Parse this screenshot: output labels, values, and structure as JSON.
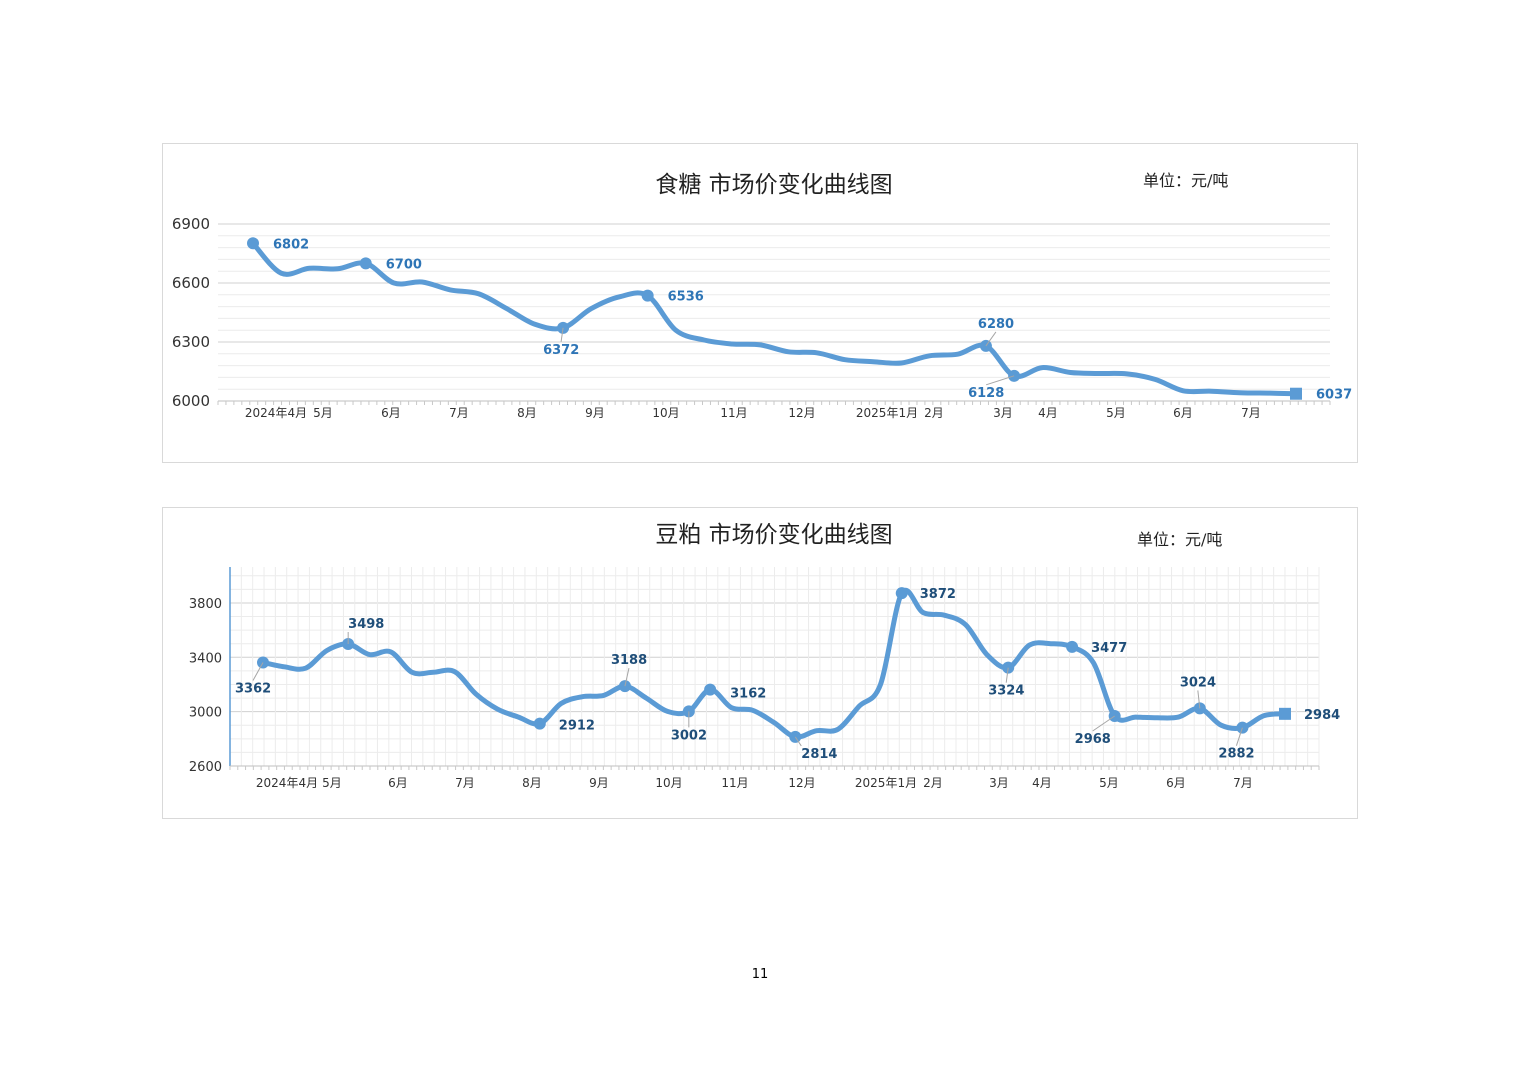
{
  "page_number": "11",
  "colors": {
    "line": "#5b9bd5",
    "label": "#2e75b6",
    "dark_label": "#1f4e79",
    "grid": "#e3e3e3",
    "axis_text": "#333333"
  },
  "chart_data": [
    {
      "type": "line",
      "title": "食糖 市场价变化曲线图",
      "unit": "单位：元/吨",
      "ylim": [
        6000,
        6900
      ],
      "yticks": [
        6000,
        6300,
        6600,
        6900
      ],
      "grid": true,
      "month_labels": [
        "2024年4月",
        "5月",
        "6月",
        "7月",
        "8月",
        "9月",
        "10月",
        "11月",
        "12月",
        "2025年1月",
        "2月",
        "3月",
        "4月",
        "5月",
        "6月",
        "7月"
      ],
      "series": [
        {
          "values": [
            6802,
            6650,
            6675,
            6672,
            6700,
            6600,
            6605,
            6565,
            6545,
            6470,
            6390,
            6372,
            6470,
            6530,
            6536,
            6360,
            6310,
            6290,
            6285,
            6250,
            6245,
            6210,
            6200,
            6193,
            6230,
            6238,
            6280,
            6128,
            6170,
            6145,
            6140,
            6138,
            6110,
            6052,
            6050,
            6042,
            6040,
            6037
          ]
        }
      ],
      "labeled_points": [
        {
          "index": 0,
          "value": "6802"
        },
        {
          "index": 4,
          "value": "6700"
        },
        {
          "index": 11,
          "value": "6372"
        },
        {
          "index": 14,
          "value": "6536"
        },
        {
          "index": 26,
          "value": "6280"
        },
        {
          "index": 27,
          "value": "6128"
        },
        {
          "index": 37,
          "value": "6037"
        }
      ]
    },
    {
      "type": "line",
      "title": "豆粕 市场价变化曲线图",
      "unit": "单位：元/吨",
      "ylim": [
        2600,
        4050
      ],
      "yticks": [
        2600,
        3000,
        3400,
        3800
      ],
      "grid": true,
      "month_labels": [
        "2024年4月",
        "5月",
        "6月",
        "7月",
        "8月",
        "9月",
        "10月",
        "11月",
        "12月",
        "2025年1月",
        "2月",
        "3月",
        "4月",
        "5月",
        "6月",
        "7月"
      ],
      "series": [
        {
          "values": [
            3362,
            3330,
            3320,
            3450,
            3498,
            3420,
            3440,
            3290,
            3290,
            3295,
            3130,
            3020,
            2960,
            2912,
            3060,
            3110,
            3120,
            3188,
            3100,
            3002,
            3002,
            3162,
            3030,
            3010,
            2920,
            2814,
            2860,
            2870,
            3040,
            3200,
            3872,
            3730,
            3710,
            3640,
            3420,
            3324,
            3490,
            3500,
            3477,
            3360,
            2968,
            2960,
            2955,
            2960,
            3024,
            2900,
            2882,
            2970,
            2984
          ]
        }
      ],
      "labeled_points": [
        {
          "index": 0,
          "value": "3362"
        },
        {
          "index": 4,
          "value": "3498"
        },
        {
          "index": 13,
          "value": "2912"
        },
        {
          "index": 17,
          "value": "3188"
        },
        {
          "index": 20,
          "value": "3002"
        },
        {
          "index": 21,
          "value": "3162"
        },
        {
          "index": 25,
          "value": "2814"
        },
        {
          "index": 30,
          "value": "3872"
        },
        {
          "index": 35,
          "value": "3324"
        },
        {
          "index": 38,
          "value": "3477"
        },
        {
          "index": 40,
          "value": "2968"
        },
        {
          "index": 44,
          "value": "3024"
        },
        {
          "index": 46,
          "value": "2882"
        },
        {
          "index": 48,
          "value": "2984"
        }
      ]
    }
  ]
}
